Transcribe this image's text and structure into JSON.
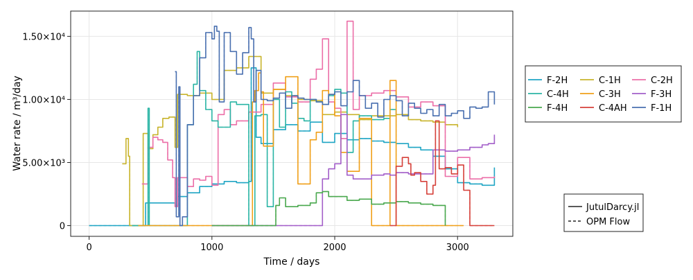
{
  "chart_data": {
    "type": "line",
    "xlabel": "Time / days",
    "ylabel": "Water rate / m³/day",
    "xlim": [
      -150,
      3450
    ],
    "ylim": [
      -850,
      17000
    ],
    "x_ticks": [
      {
        "value": 0,
        "label": "0"
      },
      {
        "value": 1000,
        "label": "1000"
      },
      {
        "value": 2000,
        "label": "2000"
      },
      {
        "value": 3000,
        "label": "3000"
      }
    ],
    "y_ticks": [
      {
        "value": 0,
        "label": "0"
      },
      {
        "value": 5000,
        "label": "5.00×10³"
      },
      {
        "value": 10000,
        "label": "1.00×10⁴"
      },
      {
        "value": 15000,
        "label": "1.50×10⁴"
      }
    ],
    "grid": true,
    "legend_position": "right",
    "series": [
      {
        "name": "F-2H",
        "color": "#1fa5c4",
        "x": [
          0,
          450,
          460,
          700,
          720,
          800,
          900,
          1000,
          1100,
          1200,
          1300,
          1320,
          1360,
          1400,
          1500,
          1600,
          1700,
          1800,
          1900,
          2000,
          2100,
          2200,
          2300,
          2400,
          2500,
          2600,
          2700,
          2800,
          2900,
          3000,
          3100,
          3200,
          3300
        ],
        "values": [
          0,
          0,
          1800,
          1600,
          2300,
          2600,
          3100,
          3300,
          3500,
          3400,
          3500,
          12500,
          7000,
          6500,
          7600,
          8000,
          7500,
          8200,
          6600,
          7300,
          6800,
          6900,
          6700,
          6600,
          6500,
          6200,
          6000,
          5500,
          4500,
          3400,
          3300,
          3200,
          4600
        ]
      },
      {
        "name": "C-1H",
        "color": "#c8b42c",
        "x": [
          270,
          300,
          320,
          330,
          400,
          440,
          480,
          520,
          560,
          600,
          650,
          700,
          720,
          800,
          900,
          1000,
          1100,
          1200,
          1300,
          1400,
          1500,
          1600,
          1700,
          1800,
          1900,
          2000,
          2100,
          2200,
          2300,
          2400,
          2500,
          2600,
          2700,
          2800,
          2900,
          3000
        ],
        "values": [
          4900,
          6900,
          5500,
          0,
          0,
          7300,
          6100,
          7200,
          7800,
          8500,
          8600,
          6200,
          10400,
          10300,
          10500,
          10000,
          12300,
          12500,
          13400,
          10500,
          10800,
          10300,
          10000,
          9900,
          8800,
          9000,
          8800,
          8400,
          8700,
          8700,
          8800,
          8400,
          8300,
          8200,
          8000,
          7800
        ]
      },
      {
        "name": "C-2H",
        "color": "#ec6fa8",
        "x": [
          430,
          480,
          520,
          560,
          600,
          640,
          680,
          700,
          720,
          760,
          800,
          850,
          900,
          950,
          1000,
          1050,
          1100,
          1150,
          1200,
          1300,
          1400,
          1500,
          1600,
          1700,
          1800,
          1850,
          1900,
          1950,
          2000,
          2050,
          2100,
          2150,
          2200,
          2300,
          2400,
          2500,
          2600,
          2700,
          2800,
          2900,
          3000,
          3100,
          3200,
          3300
        ],
        "values": [
          3300,
          6200,
          7000,
          6800,
          6600,
          5200,
          3800,
          1500,
          3800,
          3800,
          3100,
          3700,
          3600,
          3900,
          3200,
          8800,
          9200,
          8000,
          8300,
          9000,
          9600,
          11300,
          10200,
          9800,
          11600,
          12400,
          14800,
          9800,
          9300,
          6900,
          16200,
          9200,
          10300,
          10500,
          10700,
          10200,
          9400,
          9800,
          9500,
          3900,
          5400,
          3700,
          3800,
          3900
        ]
      },
      {
        "name": "C-4H",
        "color": "#2bb5a5",
        "x": [
          350,
          400,
          450,
          480,
          490,
          500,
          600,
          700,
          760,
          800,
          850,
          880,
          900,
          950,
          1000,
          1050,
          1100,
          1150,
          1200,
          1300,
          1350,
          1400,
          1450,
          1500,
          1550,
          1600,
          1650,
          1700,
          1750,
          1800,
          1850,
          1900,
          1950,
          2000,
          2050,
          2100,
          2150,
          2200,
          2300,
          2400,
          2450,
          2500
        ],
        "values": [
          0,
          0,
          0,
          9300,
          0,
          0,
          0,
          0,
          0,
          8000,
          11200,
          13800,
          10700,
          9200,
          8300,
          7800,
          7800,
          9800,
          9600,
          0,
          8700,
          8800,
          1500,
          10000,
          7800,
          10600,
          9700,
          8500,
          8300,
          10000,
          9800,
          9600,
          10300,
          10800,
          10500,
          5800,
          8300,
          8700,
          8400,
          8500,
          9200,
          8800
        ]
      },
      {
        "name": "C-3H",
        "color": "#f0a01a",
        "x": [
          400,
          500,
          560,
          600,
          700,
          750,
          800,
          900,
          1000,
          1100,
          1200,
          1300,
          1330,
          1350,
          1380,
          1400,
          1420,
          1500,
          1600,
          1700,
          1800,
          1850,
          1900,
          1950,
          2000,
          2050,
          2100,
          2200,
          2300,
          2400,
          2450,
          2500,
          2600,
          2700,
          2800,
          2900,
          3000,
          3050
        ],
        "values": [
          0,
          0,
          0,
          0,
          0,
          0,
          0,
          0,
          0,
          0,
          0,
          0,
          9800,
          10700,
          12100,
          10600,
          6300,
          10800,
          11800,
          3300,
          6800,
          7400,
          10700,
          10400,
          8700,
          5800,
          4300,
          8500,
          0,
          0,
          11500,
          0,
          0,
          0,
          0,
          0,
          0,
          0
        ]
      },
      {
        "name": "F-3H",
        "color": "#a35fc9",
        "x": [
          1000,
          1100,
          1200,
          1300,
          1400,
          1500,
          1600,
          1700,
          1800,
          1900,
          1950,
          2000,
          2050,
          2100,
          2150,
          2200,
          2300,
          2400,
          2450,
          2500,
          2600,
          2700,
          2800,
          2900,
          3000,
          3100,
          3200,
          3250,
          3300
        ],
        "values": [
          0,
          0,
          0,
          0,
          0,
          0,
          0,
          0,
          0,
          3700,
          4500,
          4900,
          8800,
          4000,
          3700,
          3700,
          4000,
          4100,
          4000,
          4200,
          4100,
          4100,
          6000,
          5900,
          6000,
          6200,
          6400,
          6500,
          7200
        ]
      },
      {
        "name": "F-4H",
        "color": "#4aa84e",
        "x": [
          1000,
          1200,
          1300,
          1350,
          1400,
          1500,
          1520,
          1550,
          1600,
          1700,
          1800,
          1850,
          1900,
          1950,
          2000,
          2100,
          2200,
          2300,
          2400,
          2500,
          2600,
          2700,
          2800,
          2900
        ],
        "values": [
          0,
          0,
          0,
          0,
          0,
          0,
          1600,
          2200,
          1500,
          1600,
          1800,
          2600,
          2700,
          2300,
          2300,
          2000,
          2100,
          1700,
          1800,
          1900,
          1800,
          1700,
          1600,
          0
        ]
      },
      {
        "name": "C-4AH",
        "color": "#d6413a",
        "x": [
          2450,
          2500,
          2550,
          2600,
          2620,
          2650,
          2700,
          2750,
          2800,
          2820,
          2850,
          2900,
          2950,
          3000,
          3050,
          3100,
          3150,
          3200,
          3250,
          3300
        ],
        "values": [
          0,
          4700,
          5400,
          4900,
          4000,
          4200,
          3500,
          2500,
          3200,
          8300,
          4500,
          4600,
          4100,
          4800,
          2800,
          0,
          0,
          0,
          0,
          0
        ]
      },
      {
        "name": "F-1H",
        "color": "#4a70b0",
        "x": [
          700,
          710,
          730,
          740,
          760,
          800,
          850,
          900,
          950,
          1000,
          1020,
          1040,
          1060,
          1100,
          1150,
          1200,
          1250,
          1300,
          1320,
          1340,
          1360,
          1400,
          1450,
          1500,
          1550,
          1600,
          1650,
          1700,
          1750,
          1800,
          1850,
          1900,
          1950,
          2000,
          2050,
          2100,
          2150,
          2200,
          2250,
          2300,
          2350,
          2400,
          2450,
          2500,
          2550,
          2600,
          2650,
          2700,
          2750,
          2800,
          2850,
          2900,
          2950,
          3000,
          3050,
          3100,
          3150,
          3200,
          3250,
          3300
        ],
        "values": [
          12200,
          700,
          11000,
          0,
          700,
          8000,
          10300,
          13300,
          15300,
          14800,
          15800,
          15400,
          9800,
          15300,
          13800,
          12000,
          13700,
          15700,
          14800,
          9800,
          12300,
          10000,
          9900,
          10100,
          10500,
          9300,
          10300,
          10100,
          10000,
          10000,
          9800,
          9600,
          10400,
          10600,
          9500,
          10600,
          11500,
          10300,
          9300,
          9700,
          8600,
          10000,
          10300,
          9900,
          8700,
          9700,
          9300,
          8900,
          9200,
          8700,
          9600,
          8700,
          8900,
          9100,
          8500,
          9400,
          9300,
          9400,
          10600,
          9600
        ]
      }
    ],
    "styles": [
      {
        "name": "JutulDarcy.jl",
        "dash": "solid"
      },
      {
        "name": "OPM Flow",
        "dash": "dashed"
      }
    ]
  }
}
